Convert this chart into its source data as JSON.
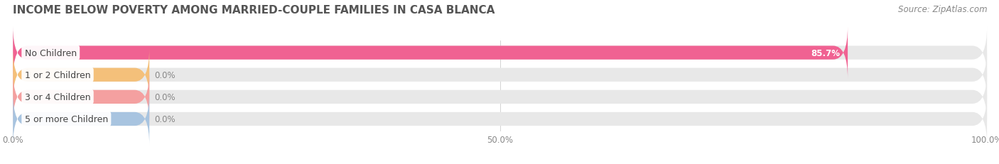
{
  "title": "INCOME BELOW POVERTY AMONG MARRIED-COUPLE FAMILIES IN CASA BLANCA",
  "source": "Source: ZipAtlas.com",
  "categories": [
    "No Children",
    "1 or 2 Children",
    "3 or 4 Children",
    "5 or more Children"
  ],
  "values": [
    85.7,
    0.0,
    0.0,
    0.0
  ],
  "bar_colors": [
    "#f06292",
    "#f4c07a",
    "#f4a0a0",
    "#a8c4e0"
  ],
  "bar_bg_color": "#e8e8e8",
  "value_labels": [
    "85.7%",
    "0.0%",
    "0.0%",
    "0.0%"
  ],
  "xlim": [
    0,
    100
  ],
  "xticks": [
    0.0,
    50.0,
    100.0
  ],
  "xticklabels": [
    "0.0%",
    "50.0%",
    "100.0%"
  ],
  "background_color": "#ffffff",
  "bar_height": 0.62,
  "figsize": [
    14.06,
    2.32
  ],
  "dpi": 100,
  "title_fontsize": 11,
  "source_fontsize": 8.5,
  "label_fontsize": 9,
  "value_fontsize": 8.5
}
